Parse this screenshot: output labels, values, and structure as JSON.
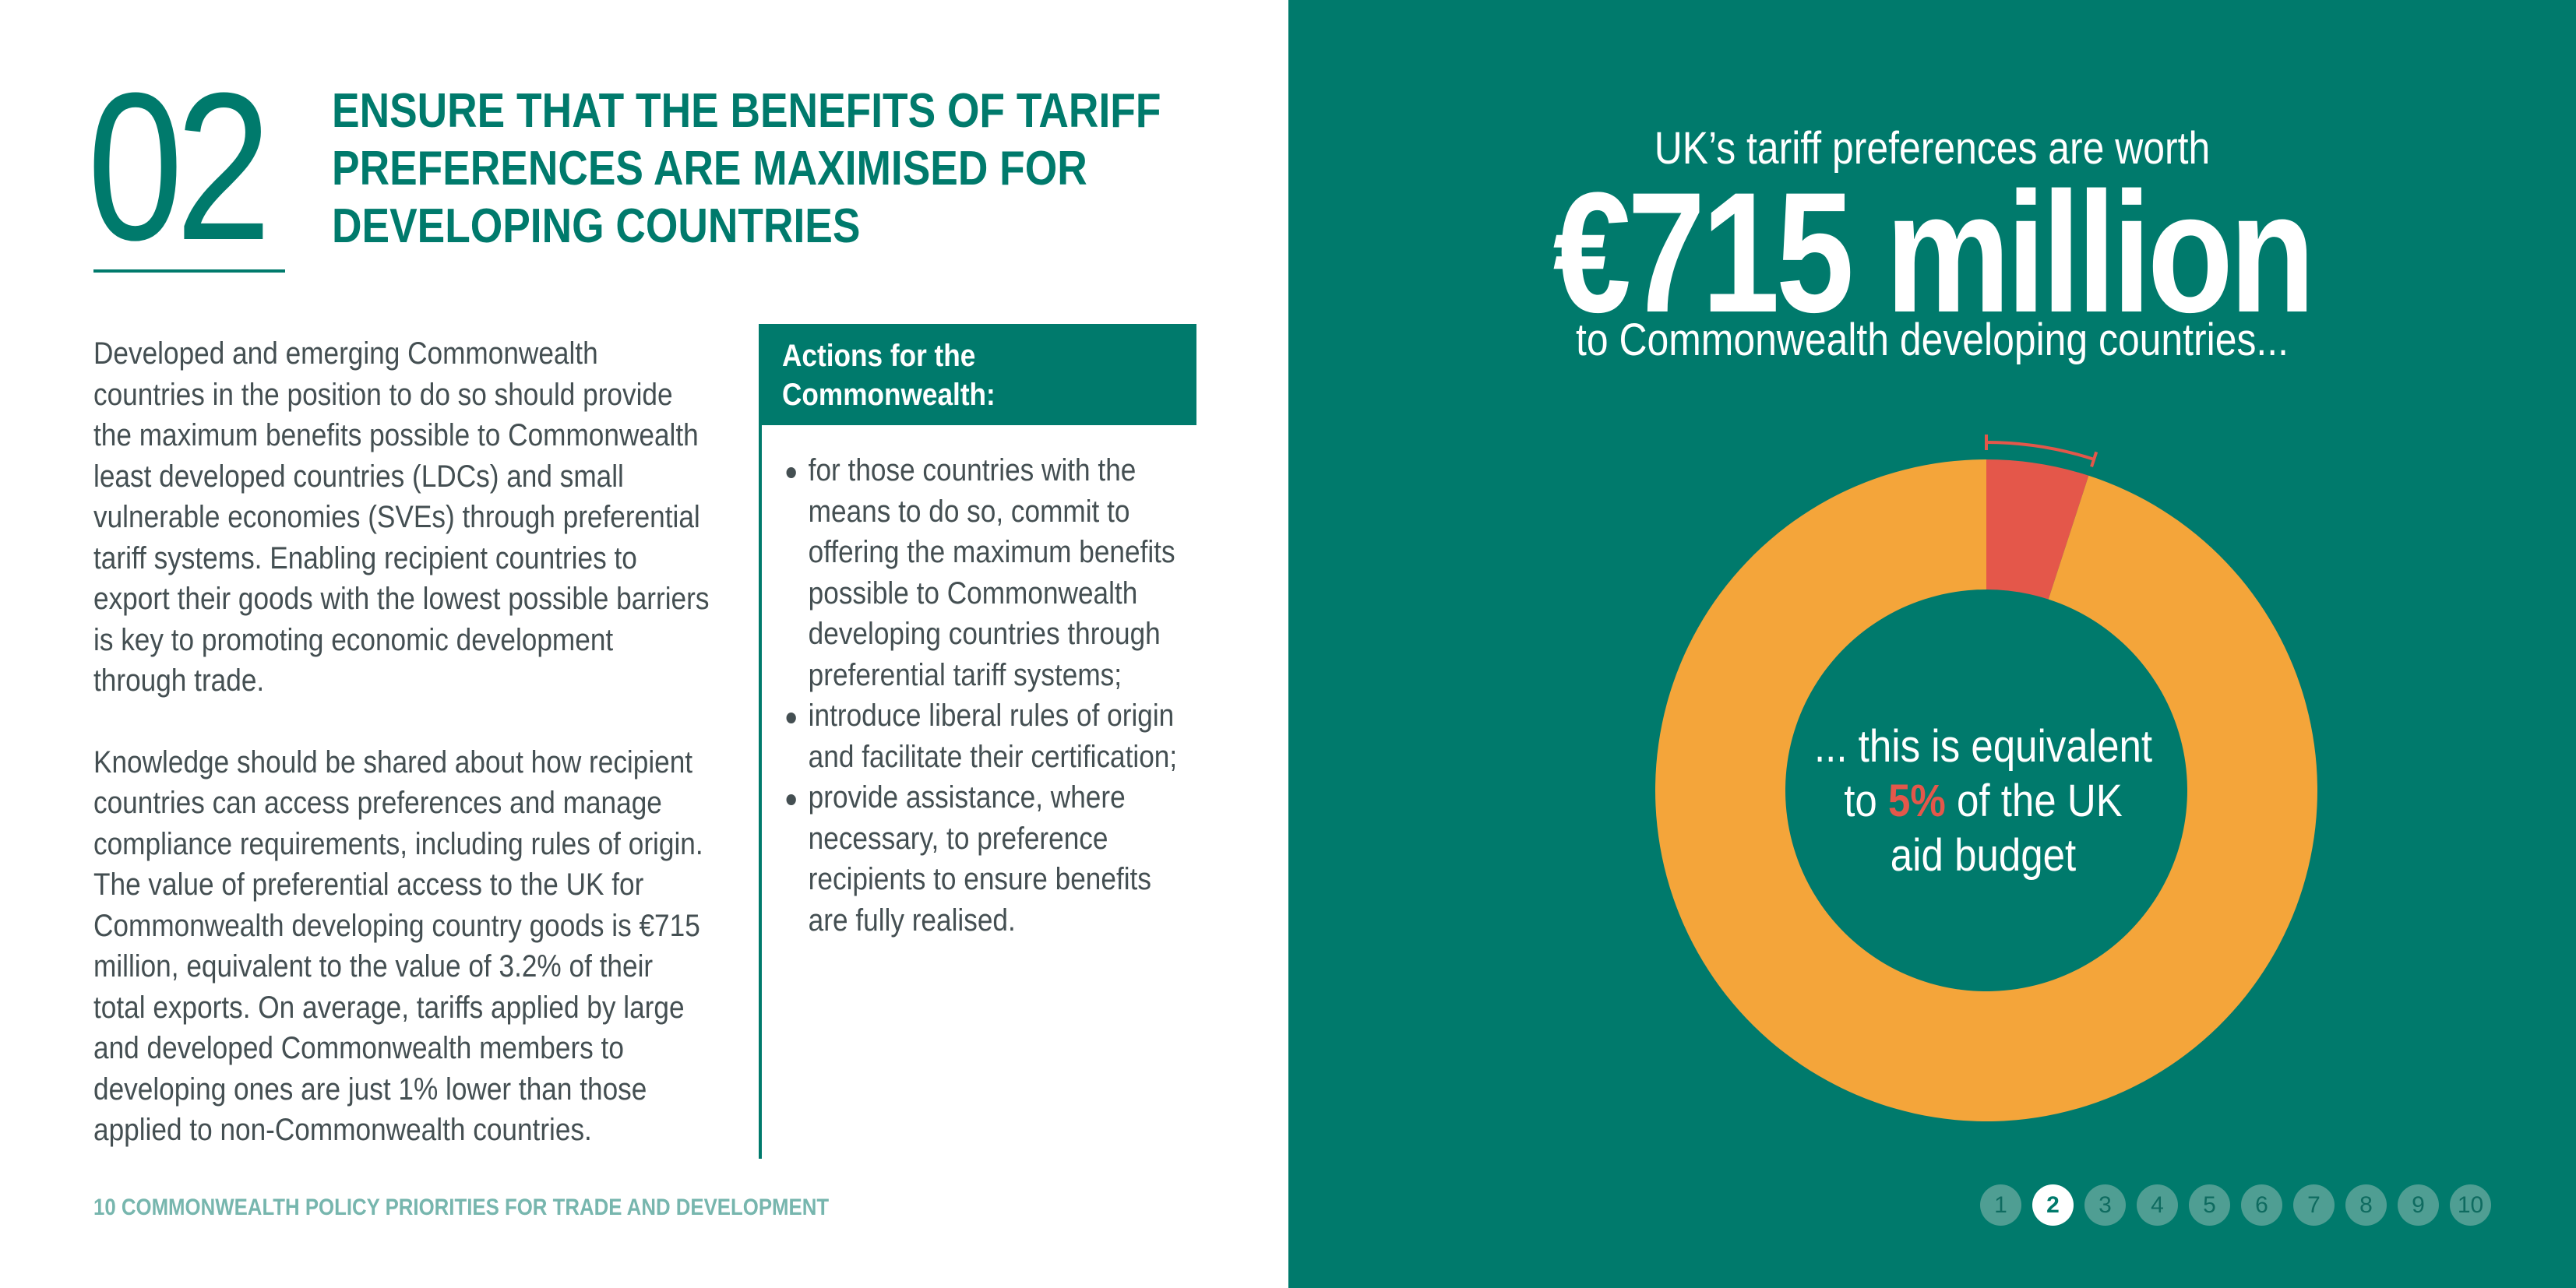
{
  "section": {
    "number": "02",
    "heading_lines": [
      "ENSURE THAT THE BENEFITS OF TARIFF",
      "PREFERENCES ARE MAXIMISED FOR",
      "DEVELOPING COUNTRIES"
    ]
  },
  "body": {
    "paragraph1": "Developed and emerging Commonwealth countries in the position to do so should provide the maximum benefits possible to Commonwealth least developed countries (LDCs) and small vulnerable economies (SVEs) through preferential tariff systems. Enabling recipient countries to export their goods with the lowest possible barriers is key to promoting economic development through trade.",
    "paragraph2": "Knowledge should be shared about how recipient countries can access preferences and manage compliance requirements, including rules of origin. The value of preferential access to the UK for Commonwealth developing country goods is €715 million, equivalent to the value of 3.2% of their total exports. On average, tariffs applied by large and developed Commonwealth members to developing ones are just 1% lower than those applied to non-Commonwealth countries."
  },
  "actions": {
    "title_line1": "Actions for the",
    "title_line2": "Commonwealth:",
    "items": [
      "for those countries with the means to do so, commit to offering the maximum benefits possible to Commonwealth developing countries through preferential tariff systems;",
      "introduce liberal rules of origin and facilitate their certification;",
      "provide assistance, where necessary, to preference recipients to ensure benefits are fully realised."
    ]
  },
  "footer": "10 COMMONWEALTH POLICY PRIORITIES FOR TRADE AND DEVELOPMENT",
  "infographic": {
    "line1": "UK’s tariff preferences are worth",
    "amount": "€715 million",
    "line2": "to Commonwealth developing countries...",
    "center_pre": "... this is equivalent",
    "center_to": "to ",
    "center_highlight": "5%",
    "center_post": " of the UK",
    "center_last": "aid budget"
  },
  "chart_data": {
    "type": "pie",
    "donut": true,
    "slices": [
      {
        "label": "5%",
        "value": 5,
        "color": "#e4574a"
      },
      {
        "value": 95,
        "color": "#f4a53a"
      }
    ]
  },
  "colors": {
    "brand_teal": "#007a6c",
    "highlight_red": "#e4574a",
    "donut_orange": "#f4a53a"
  },
  "pagination": {
    "pages": [
      "1",
      "2",
      "3",
      "4",
      "5",
      "6",
      "7",
      "8",
      "9",
      "10"
    ],
    "current": "2"
  }
}
